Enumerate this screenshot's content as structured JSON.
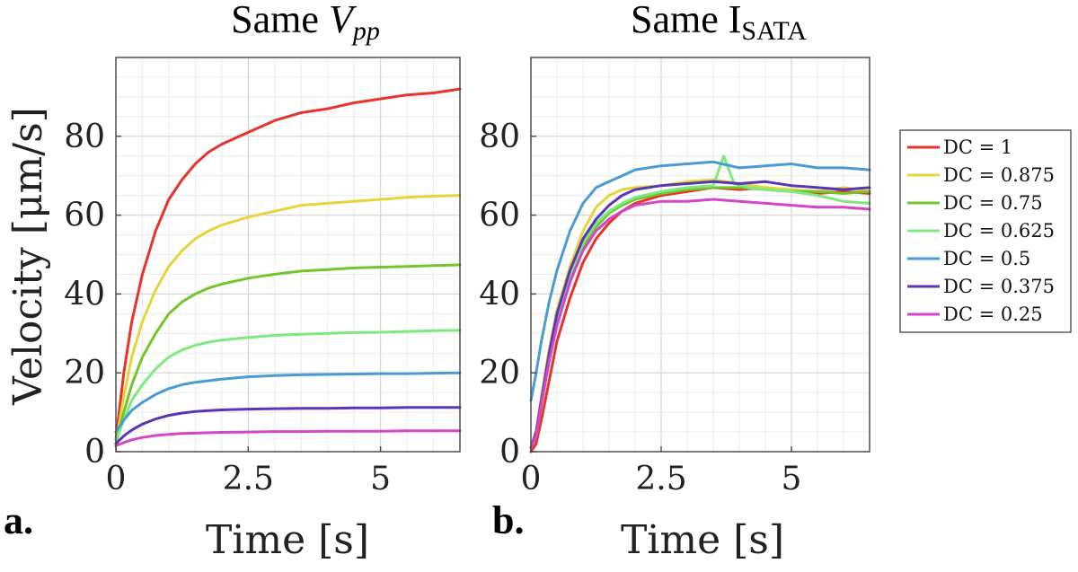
{
  "figure": {
    "panel_letters": [
      "a.",
      "b."
    ],
    "subtitle_sub_b": "SATA"
  },
  "chart_data": [
    {
      "type": "line",
      "panel": "a.",
      "title": "Same Vpp",
      "title_main": "Same ",
      "title_var": "V",
      "title_sub": "pp",
      "xlabel": "Time [s]",
      "ylabel": "Velocity [μm/s]",
      "xlim": [
        0,
        6.5
      ],
      "ylim": [
        0,
        100
      ],
      "xticks": [
        0,
        2.5,
        5
      ],
      "xtick_labels": [
        "0",
        "2.5",
        "5"
      ],
      "yticks": [
        0,
        20,
        40,
        60,
        80
      ],
      "ytick_labels": [
        "0",
        "20",
        "40",
        "60",
        "80"
      ],
      "grid": true,
      "series": [
        {
          "name": "DC = 1",
          "color": "#e8332a",
          "x": [
            0,
            0.15,
            0.3,
            0.5,
            0.75,
            1,
            1.25,
            1.5,
            1.75,
            2,
            2.5,
            3,
            3.5,
            4,
            4.5,
            5,
            5.5,
            6,
            6.5
          ],
          "y": [
            3,
            20,
            33,
            45,
            56,
            64,
            69,
            73,
            76,
            78,
            81,
            84,
            86,
            87,
            88.5,
            89.5,
            90.5,
            91,
            92
          ]
        },
        {
          "name": "DC = 0.875",
          "color": "#e5d53a",
          "x": [
            0,
            0.15,
            0.3,
            0.5,
            0.75,
            1,
            1.25,
            1.5,
            1.75,
            2,
            2.5,
            3,
            3.5,
            4,
            4.5,
            5,
            5.5,
            6,
            6.5
          ],
          "y": [
            2,
            14,
            24,
            33,
            41,
            47,
            51,
            54,
            56,
            57.5,
            59.5,
            61,
            62.5,
            63,
            63.5,
            64,
            64.5,
            64.8,
            65
          ]
        },
        {
          "name": "DC = 0.75",
          "color": "#72c52b",
          "x": [
            0,
            0.15,
            0.3,
            0.5,
            0.75,
            1,
            1.25,
            1.5,
            1.75,
            2,
            2.5,
            3,
            3.5,
            4,
            4.5,
            5,
            5.5,
            6,
            6.5
          ],
          "y": [
            2,
            10,
            17,
            24,
            30,
            35,
            38,
            40,
            41.5,
            42.5,
            44,
            45,
            45.8,
            46.2,
            46.6,
            46.8,
            47,
            47.2,
            47.4
          ]
        },
        {
          "name": "DC = 0.625",
          "color": "#7fe87f",
          "x": [
            0,
            0.15,
            0.3,
            0.5,
            0.75,
            1,
            1.25,
            1.5,
            1.75,
            2,
            2.5,
            3,
            3.5,
            4,
            4.5,
            5,
            5.5,
            6,
            6.5
          ],
          "y": [
            3,
            8,
            13,
            17,
            21,
            24,
            25.8,
            27,
            27.8,
            28.3,
            29,
            29.5,
            29.8,
            30,
            30.2,
            30.3,
            30.5,
            30.7,
            30.8
          ]
        },
        {
          "name": "DC = 0.5",
          "color": "#4a9ad4",
          "x": [
            0,
            0.15,
            0.3,
            0.5,
            0.75,
            1,
            1.25,
            1.5,
            1.75,
            2,
            2.5,
            3,
            3.5,
            4,
            4.5,
            5,
            5.5,
            6,
            6.5
          ],
          "y": [
            5,
            8,
            10.5,
            12.5,
            14.5,
            16,
            17,
            17.6,
            18,
            18.4,
            19,
            19.3,
            19.5,
            19.6,
            19.7,
            19.8,
            19.8,
            19.9,
            20
          ]
        },
        {
          "name": "DC = 0.375",
          "color": "#5a35b8",
          "x": [
            0,
            0.15,
            0.3,
            0.5,
            0.75,
            1,
            1.25,
            1.5,
            1.75,
            2,
            2.5,
            3,
            3.5,
            4,
            4.5,
            5,
            5.5,
            6,
            6.5
          ],
          "y": [
            2,
            4,
            5.5,
            7,
            8.3,
            9.2,
            9.8,
            10.2,
            10.4,
            10.6,
            10.8,
            10.9,
            11,
            11,
            11.1,
            11.1,
            11.2,
            11.2,
            11.2
          ]
        },
        {
          "name": "DC = 0.25",
          "color": "#d246c8",
          "x": [
            0,
            0.15,
            0.3,
            0.5,
            0.75,
            1,
            1.25,
            1.5,
            1.75,
            2,
            2.5,
            3,
            3.5,
            4,
            4.5,
            5,
            5.5,
            6,
            6.5
          ],
          "y": [
            1.5,
            2.3,
            3,
            3.6,
            4.1,
            4.4,
            4.6,
            4.7,
            4.8,
            4.9,
            5,
            5.1,
            5.1,
            5.2,
            5.2,
            5.2,
            5.3,
            5.3,
            5.3
          ]
        }
      ]
    },
    {
      "type": "line",
      "panel": "b.",
      "title": "Same ISATA",
      "title_main": "Same I",
      "title_sub": "SATA",
      "xlabel": "Time [s]",
      "ylabel": "",
      "xlim": [
        0,
        6.5
      ],
      "ylim": [
        0,
        100
      ],
      "xticks": [
        0,
        2.5,
        5
      ],
      "xtick_labels": [
        "0",
        "2.5",
        "5"
      ],
      "yticks": [
        0,
        20,
        40,
        60,
        80
      ],
      "ytick_labels": [
        "0",
        "20",
        "40",
        "60",
        "80"
      ],
      "grid": true,
      "series": [
        {
          "name": "DC = 1",
          "color": "#e8332a",
          "x": [
            0,
            0.1,
            0.2,
            0.35,
            0.5,
            0.75,
            1,
            1.25,
            1.5,
            1.75,
            2,
            2.5,
            3,
            3.5,
            4,
            4.5,
            5,
            5.5,
            6,
            6.5
          ],
          "y": [
            0,
            2,
            8,
            18,
            28,
            39,
            48,
            54,
            58,
            61,
            63,
            65,
            66,
            67,
            66.5,
            67,
            66,
            65.5,
            66,
            65.5
          ]
        },
        {
          "name": "DC = 0.875",
          "color": "#e5d53a",
          "x": [
            0,
            0.1,
            0.2,
            0.35,
            0.5,
            0.75,
            1,
            1.25,
            1.5,
            1.75,
            2,
            2.5,
            3,
            3.5,
            4,
            4.5,
            5,
            5.5,
            6,
            6.5
          ],
          "y": [
            1,
            5,
            14,
            26,
            36,
            47,
            56,
            62,
            65,
            66.5,
            67,
            67.5,
            68.5,
            69,
            68,
            67,
            66.5,
            66,
            67,
            66
          ]
        },
        {
          "name": "DC = 0.75",
          "color": "#72c52b",
          "x": [
            0,
            0.1,
            0.2,
            0.35,
            0.5,
            0.75,
            1,
            1.25,
            1.5,
            1.75,
            2,
            2.5,
            3,
            3.5,
            4,
            4.5,
            5,
            5.5,
            6,
            6.5
          ],
          "y": [
            1,
            4,
            12,
            23,
            33,
            44,
            52,
            57,
            60.5,
            62.5,
            64,
            65.5,
            66.5,
            67,
            67,
            66.5,
            66,
            66,
            65.5,
            66
          ]
        },
        {
          "name": "DC = 0.625",
          "color": "#7fe87f",
          "x": [
            0,
            0.1,
            0.2,
            0.35,
            0.5,
            0.75,
            1,
            1.25,
            1.5,
            1.75,
            2,
            2.5,
            3,
            3.5,
            3.7,
            3.9,
            4.2,
            4.5,
            5,
            5.5,
            6,
            6.5
          ],
          "y": [
            1,
            4,
            12,
            24,
            34,
            45,
            53,
            58,
            61,
            63,
            64.5,
            66,
            67,
            67.5,
            75,
            68,
            67,
            66.5,
            66,
            65,
            63.5,
            63
          ]
        },
        {
          "name": "DC = 0.5",
          "color": "#4a9ad4",
          "x": [
            0,
            0.1,
            0.2,
            0.35,
            0.5,
            0.75,
            1,
            1.25,
            1.5,
            1.75,
            2,
            2.5,
            3,
            3.5,
            4,
            4.5,
            5,
            5.5,
            6,
            6.5
          ],
          "y": [
            13,
            20,
            28,
            38,
            46,
            56,
            63,
            67,
            68.5,
            70,
            71.5,
            72.5,
            73,
            73.5,
            72,
            72.5,
            73,
            72,
            72,
            71.5
          ]
        },
        {
          "name": "DC = 0.375",
          "color": "#5a35b8",
          "x": [
            0,
            0.1,
            0.2,
            0.35,
            0.5,
            0.75,
            1,
            1.25,
            1.5,
            1.75,
            2,
            2.5,
            3,
            3.5,
            4,
            4.5,
            5,
            5.5,
            6,
            6.5
          ],
          "y": [
            1,
            5,
            13,
            25,
            35,
            46,
            54,
            59,
            62.5,
            65,
            66.5,
            67.5,
            68,
            68.5,
            68,
            68.5,
            67.5,
            67,
            66.5,
            67
          ]
        },
        {
          "name": "DC = 0.25",
          "color": "#d246c8",
          "x": [
            0,
            0.1,
            0.2,
            0.35,
            0.5,
            0.75,
            1,
            1.25,
            1.5,
            1.75,
            2,
            2.5,
            3,
            3.5,
            4,
            4.5,
            5,
            5.5,
            6,
            6.5
          ],
          "y": [
            1,
            4,
            12,
            23,
            32,
            43,
            51,
            56,
            59,
            61,
            62.5,
            63.5,
            63.5,
            64,
            63.5,
            63,
            62.5,
            62,
            62,
            61.5
          ]
        }
      ]
    }
  ],
  "legend": {
    "entries": [
      "DC = 1",
      "DC = 0.875",
      "DC = 0.75",
      "DC = 0.625",
      "DC = 0.5",
      "DC = 0.375",
      "DC = 0.25"
    ],
    "colors": [
      "#e8332a",
      "#e5d53a",
      "#72c52b",
      "#7fe87f",
      "#4a9ad4",
      "#5a35b8",
      "#d246c8"
    ],
    "placement": "right"
  }
}
